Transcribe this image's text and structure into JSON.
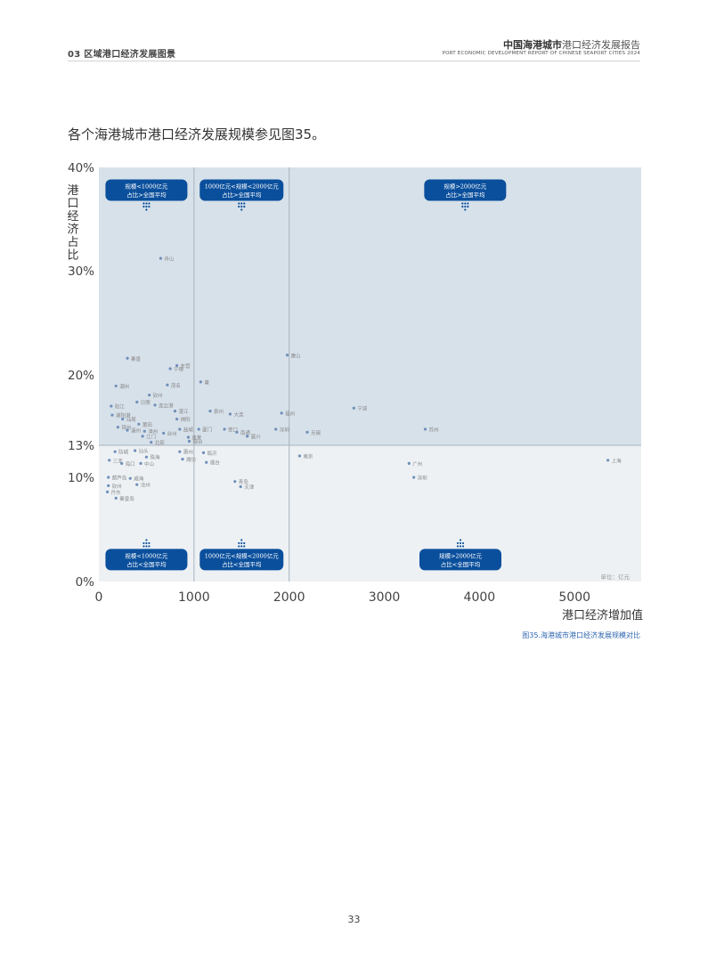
{
  "header": {
    "section": "03 区域港口经济发展图景",
    "report_title_bold": "中国海港城市",
    "report_title_rest": "港口经济发展报告",
    "report_title_en": "PORT ECONOMIC DEVELOPMENT REPORT OF CHINESE SEAPORT CITIES 2024"
  },
  "intro_text": "各个海港城市港口经济发展规模参见图35。",
  "caption": "图35.海港城市港口经济发展规模对比",
  "page_number": "33",
  "colors": {
    "quadrant_top": "#d7e1ea",
    "quadrant_bottom": "#edf1f4",
    "badge": "#0a4f9c",
    "point": "#6f8fb8",
    "label": "#888888",
    "divider": "#a9b3bd"
  },
  "chart_data": {
    "type": "scatter",
    "title": "",
    "xlabel": "港口经济增加值",
    "ylabel": "港口经济占比",
    "unit_note": "单位：亿元",
    "xlim": [
      0,
      5700
    ],
    "ylim": [
      0,
      40
    ],
    "x_ticks": [
      0,
      1000,
      2000,
      3000,
      4000,
      5000
    ],
    "x_tick_labels": [
      "0",
      "1000",
      "2000",
      "3000",
      "4000",
      "5000"
    ],
    "y_ticks": [
      0,
      10,
      13,
      20,
      30,
      40
    ],
    "y_tick_labels": [
      "0%",
      "10%",
      "13%",
      "20%",
      "30%",
      "40%"
    ],
    "grid": false,
    "dividers": {
      "x": [
        1000,
        2000
      ],
      "y": 13
    },
    "quadrant_labels": [
      {
        "line1": "规模<1000亿元",
        "line2": "占比>全国平均",
        "x": 500,
        "y": 37.8,
        "arrow": "down"
      },
      {
        "line1": "1000亿元<规模<2000亿元",
        "line2": "占比>全国平均",
        "x": 1500,
        "y": 37.8,
        "arrow": "down"
      },
      {
        "line1": "规模>2000亿元",
        "line2": "占比>全国平均",
        "x": 3850,
        "y": 37.8,
        "arrow": "down"
      },
      {
        "line1": "规模<1000亿元",
        "line2": "占比<全国平均",
        "x": 500,
        "y": 2.1,
        "arrow": "up"
      },
      {
        "line1": "1000亿元<规模<2000亿元",
        "line2": "占比<全国平均",
        "x": 1500,
        "y": 2.1,
        "arrow": "up"
      },
      {
        "line1": "规模>2000亿元",
        "line2": "占比<全国平均",
        "x": 3800,
        "y": 2.1,
        "arrow": "up"
      }
    ],
    "points": [
      {
        "name": "舟山",
        "x": 650,
        "y": 31.2
      },
      {
        "name": "秦皇",
        "x": 300,
        "y": 21.6
      },
      {
        "name": "宁德",
        "x": 750,
        "y": 20.6
      },
      {
        "name": "东营",
        "x": 820,
        "y": 20.9
      },
      {
        "name": "茂名",
        "x": 720,
        "y": 19.0
      },
      {
        "name": "潮州",
        "x": 180,
        "y": 18.9
      },
      {
        "name": "莆",
        "x": 1070,
        "y": 19.3
      },
      {
        "name": "钦州",
        "x": 530,
        "y": 18.0
      },
      {
        "name": "日照",
        "x": 400,
        "y": 17.3
      },
      {
        "name": "连云港",
        "x": 590,
        "y": 17.0
      },
      {
        "name": "阳江",
        "x": 130,
        "y": 16.9
      },
      {
        "name": "湛江",
        "x": 800,
        "y": 16.4
      },
      {
        "name": "潮阳港",
        "x": 140,
        "y": 16.0
      },
      {
        "name": "汕尾",
        "x": 250,
        "y": 15.6
      },
      {
        "name": "揭阳",
        "x": 820,
        "y": 15.6
      },
      {
        "name": "莆田",
        "x": 420,
        "y": 15.1
      },
      {
        "name": "锦州",
        "x": 200,
        "y": 14.8
      },
      {
        "name": "湄州",
        "x": 300,
        "y": 14.5
      },
      {
        "name": "漳州",
        "x": 480,
        "y": 14.4
      },
      {
        "name": "台州",
        "x": 680,
        "y": 14.2
      },
      {
        "name": "盐城",
        "x": 850,
        "y": 14.6
      },
      {
        "name": "泉州",
        "x": 1170,
        "y": 16.4
      },
      {
        "name": "大连",
        "x": 1380,
        "y": 16.1
      },
      {
        "name": "唐山",
        "x": 1980,
        "y": 21.9
      },
      {
        "name": "福州",
        "x": 1920,
        "y": 16.2
      },
      {
        "name": "厦门",
        "x": 1050,
        "y": 14.6
      },
      {
        "name": "营口",
        "x": 1320,
        "y": 14.6
      },
      {
        "name": "南通",
        "x": 1450,
        "y": 14.3
      },
      {
        "name": "嘉兴",
        "x": 1560,
        "y": 13.9
      },
      {
        "name": "深圳",
        "x": 1860,
        "y": 14.6
      },
      {
        "name": "蓬莱",
        "x": 940,
        "y": 13.8
      },
      {
        "name": "烟台",
        "x": 950,
        "y": 13.4
      },
      {
        "name": "无锡",
        "x": 2190,
        "y": 14.3
      },
      {
        "name": "宁波",
        "x": 2680,
        "y": 16.7
      },
      {
        "name": "苏州",
        "x": 3430,
        "y": 14.6
      },
      {
        "name": "北部",
        "x": 550,
        "y": 13.3
      },
      {
        "name": "江门",
        "x": 460,
        "y": 13.9
      },
      {
        "name": "汕头",
        "x": 380,
        "y": 12.5
      },
      {
        "name": "防城",
        "x": 170,
        "y": 12.4
      },
      {
        "name": "珠海",
        "x": 500,
        "y": 11.9
      },
      {
        "name": "三亚",
        "x": 110,
        "y": 11.6
      },
      {
        "name": "海口",
        "x": 240,
        "y": 11.3
      },
      {
        "name": "中山",
        "x": 440,
        "y": 11.3
      },
      {
        "name": "惠州",
        "x": 850,
        "y": 12.4
      },
      {
        "name": "临沂",
        "x": 1100,
        "y": 12.3
      },
      {
        "name": "潍坊",
        "x": 880,
        "y": 11.7
      },
      {
        "name": "烟台",
        "x": 1130,
        "y": 11.4
      },
      {
        "name": "南京",
        "x": 2110,
        "y": 12.0
      },
      {
        "name": "葫芦岛",
        "x": 100,
        "y": 10.0
      },
      {
        "name": "威海",
        "x": 330,
        "y": 9.9
      },
      {
        "name": "钦州",
        "x": 100,
        "y": 9.2
      },
      {
        "name": "沧州",
        "x": 400,
        "y": 9.3
      },
      {
        "name": "丹东",
        "x": 90,
        "y": 8.6
      },
      {
        "name": "秦皇岛",
        "x": 180,
        "y": 8.0
      },
      {
        "name": "青岛",
        "x": 1430,
        "y": 9.6
      },
      {
        "name": "天津",
        "x": 1490,
        "y": 9.1
      },
      {
        "name": "广州",
        "x": 3260,
        "y": 11.3
      },
      {
        "name": "深圳",
        "x": 3310,
        "y": 10.0
      },
      {
        "name": "上海",
        "x": 5350,
        "y": 11.6
      }
    ]
  }
}
